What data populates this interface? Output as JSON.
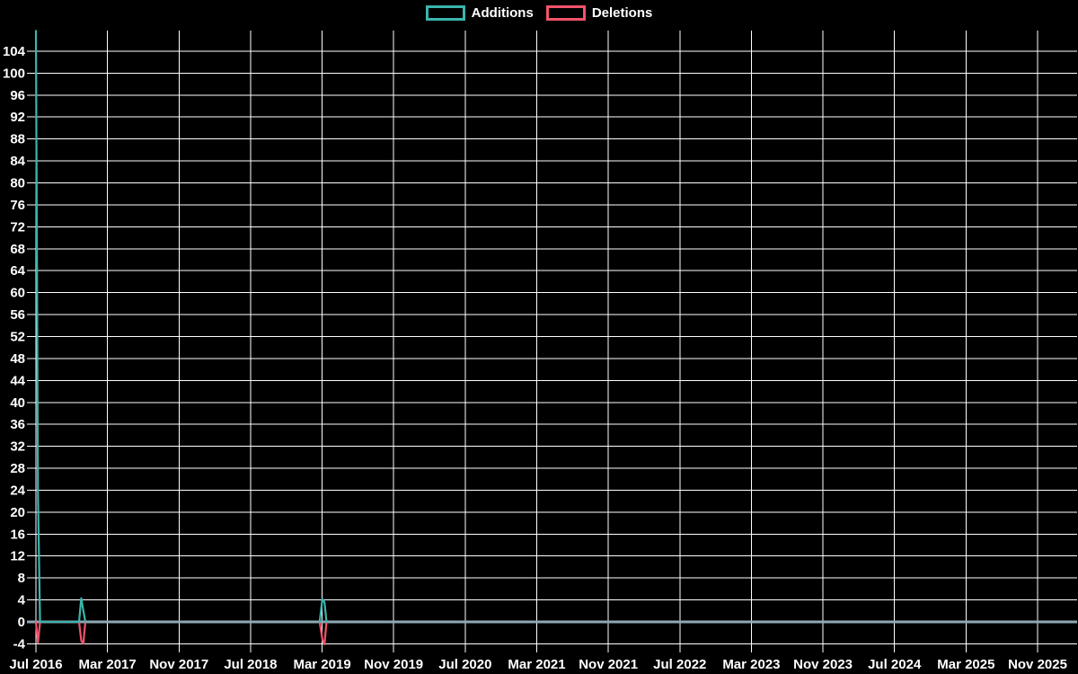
{
  "chart_data": {
    "type": "line",
    "title": "",
    "legend_position": "top-center",
    "background_color": "#000000",
    "grid_color": "#ffffff",
    "zero_line_color": "#8ea9b2",
    "text_color": "#ffffff",
    "x_origin": "2016-07-02",
    "x_tick_interval_months": 8,
    "x_tick_labels": [
      "Jul 2016",
      "Mar 2017",
      "Nov 2017",
      "Jul 2018",
      "Mar 2019",
      "Nov 2019",
      "Jul 2020",
      "Mar 2021",
      "Nov 2021",
      "Jul 2022",
      "Mar 2023",
      "Nov 2023",
      "Jul 2024",
      "Mar 2025",
      "Nov 2025"
    ],
    "y_ticks": [
      -4,
      0,
      4,
      8,
      12,
      16,
      20,
      24,
      28,
      32,
      36,
      40,
      44,
      48,
      52,
      56,
      60,
      64,
      68,
      72,
      76,
      80,
      84,
      88,
      92,
      96,
      100,
      104
    ],
    "y_range": [
      -4.9,
      107.7
    ],
    "series": [
      {
        "name": "Additions",
        "color": "#3ab5ad",
        "segments": [
          [
            [
              "2016-07-02",
              107.7
            ],
            [
              "2016-07-09",
              23
            ],
            [
              "2016-07-16",
              0
            ],
            [
              "2016-11-27",
              0
            ],
            [
              "2016-12-04",
              4.3
            ],
            [
              "2016-12-11",
              2.1
            ],
            [
              "2016-12-18",
              0
            ]
          ],
          [
            [
              "2019-02-24",
              0
            ],
            [
              "2019-03-03",
              4.2
            ],
            [
              "2019-03-10",
              3.6
            ],
            [
              "2019-03-17",
              0
            ]
          ]
        ]
      },
      {
        "name": "Deletions",
        "color": "#f2536b",
        "segments": [
          [
            [
              "2016-07-02",
              0
            ],
            [
              "2016-07-09",
              -3.8
            ],
            [
              "2016-07-16",
              0
            ],
            [
              "2016-11-27",
              0
            ],
            [
              "2016-12-04",
              -3.4
            ],
            [
              "2016-12-11",
              -4.0
            ],
            [
              "2016-12-18",
              0
            ]
          ],
          [
            [
              "2019-02-24",
              0
            ],
            [
              "2019-03-03",
              -3.2
            ],
            [
              "2019-03-10",
              -4.1
            ],
            [
              "2019-03-17",
              0
            ]
          ]
        ]
      }
    ]
  }
}
